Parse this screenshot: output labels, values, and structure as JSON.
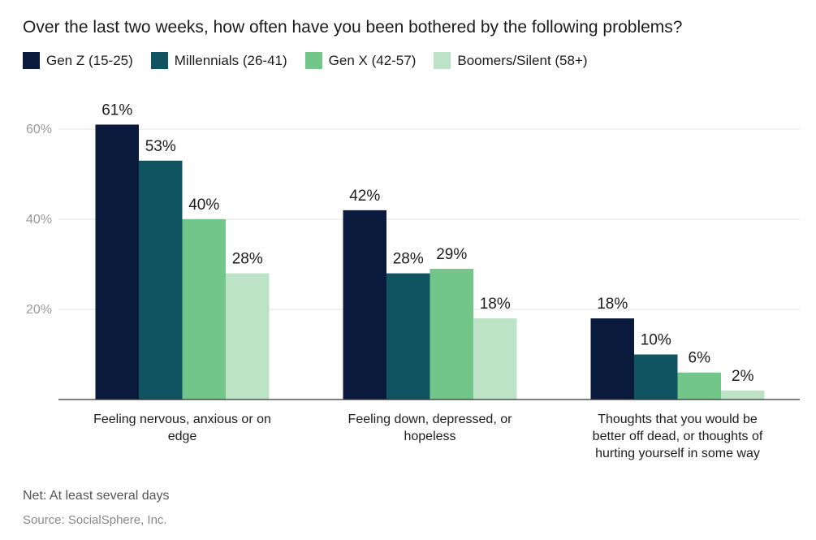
{
  "chart_data": {
    "type": "bar",
    "title": "Over the last two weeks, how often have you been bothered by the following problems?",
    "categories": [
      [
        "Feeling nervous, anxious or on",
        "edge"
      ],
      [
        "Feeling down, depressed, or",
        "hopeless"
      ],
      [
        "Thoughts that you would be",
        "better off dead, or thoughts of",
        "hurting yourself in some way"
      ]
    ],
    "series": [
      {
        "name": "Gen Z (15-25)",
        "color": "#0a1a3c",
        "values": [
          61,
          42,
          18
        ]
      },
      {
        "name": "Millennials (26-41)",
        "color": "#115461",
        "values": [
          53,
          28,
          10
        ]
      },
      {
        "name": "Gen X (42-57)",
        "color": "#72c68a",
        "values": [
          40,
          29,
          6
        ]
      },
      {
        "name": "Boomers/Silent (58+)",
        "color": "#bde3c7",
        "values": [
          28,
          18,
          2
        ]
      }
    ],
    "ylim": [
      0,
      60
    ],
    "yticks": [
      20,
      40,
      60
    ],
    "ytick_labels": [
      "20%",
      "40%",
      "60%"
    ],
    "value_suffix": "%",
    "xlabel": "",
    "ylabel": "",
    "grid": true
  },
  "footer": {
    "note": "Net: At least several days",
    "source": "Source: SocialSphere, Inc."
  }
}
